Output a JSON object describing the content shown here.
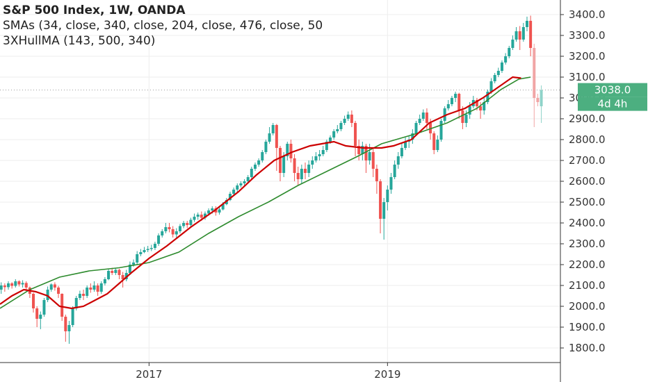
{
  "legend": {
    "title": "S&P 500 Index, 1W, OANDA",
    "sma": "SMAs (34, close, 340, close, 204, close, 476, close, 50",
    "hull": "3XHullMA (143, 500, 340)"
  },
  "price_label": {
    "value": "3038.0",
    "countdown": "4d 4h"
  },
  "colors": {
    "up": "#26a69a",
    "down": "#ef5350",
    "up_light": "#8fd3c9",
    "down_light": "#f1a5a5",
    "sma": "#2e8b2e",
    "hull": "#cc0000",
    "price_box": "#4caf80",
    "axis": "#333333",
    "grid": "#eeeeee"
  },
  "chart_data": {
    "type": "candlestick",
    "title": "S&P 500 Index, 1W, OANDA",
    "y_ticks": [
      "1800.0",
      "1900.0",
      "2000.0",
      "2100.0",
      "2200.0",
      "2300.0",
      "2400.0",
      "2500.0",
      "2600.0",
      "2700.0",
      "2800.0",
      "2900.0",
      "3000.0",
      "3100.0",
      "3200.0",
      "3300.0",
      "3400.0"
    ],
    "x_ticks": [
      "2017",
      "2019"
    ],
    "ylim": [
      1730,
      3470
    ],
    "xlim": [
      2015.75,
      2020.45
    ],
    "grid": true,
    "last_price": 3038.0,
    "series": [
      {
        "name": "SMA",
        "points": [
          [
            2015.75,
            1990
          ],
          [
            2016.0,
            2080
          ],
          [
            2016.25,
            2140
          ],
          [
            2016.5,
            2170
          ],
          [
            2016.75,
            2185
          ],
          [
            2017.0,
            2210
          ],
          [
            2017.25,
            2260
          ],
          [
            2017.5,
            2350
          ],
          [
            2017.75,
            2430
          ],
          [
            2018.0,
            2500
          ],
          [
            2018.25,
            2580
          ],
          [
            2018.5,
            2650
          ],
          [
            2018.75,
            2720
          ],
          [
            2018.95,
            2780
          ],
          [
            2019.25,
            2830
          ],
          [
            2019.5,
            2880
          ],
          [
            2019.75,
            2950
          ],
          [
            2019.95,
            3040
          ],
          [
            2020.1,
            3090
          ],
          [
            2020.2,
            3100
          ]
        ]
      },
      {
        "name": "3XHullMA",
        "points": [
          [
            2015.75,
            2010
          ],
          [
            2015.85,
            2050
          ],
          [
            2015.95,
            2080
          ],
          [
            2016.05,
            2070
          ],
          [
            2016.15,
            2050
          ],
          [
            2016.25,
            2000
          ],
          [
            2016.35,
            1990
          ],
          [
            2016.45,
            2000
          ],
          [
            2016.55,
            2030
          ],
          [
            2016.65,
            2060
          ],
          [
            2016.75,
            2110
          ],
          [
            2016.85,
            2160
          ],
          [
            2017.0,
            2230
          ],
          [
            2017.15,
            2290
          ],
          [
            2017.35,
            2380
          ],
          [
            2017.55,
            2460
          ],
          [
            2017.75,
            2550
          ],
          [
            2017.9,
            2630
          ],
          [
            2018.05,
            2700
          ],
          [
            2018.2,
            2740
          ],
          [
            2018.35,
            2770
          ],
          [
            2018.45,
            2780
          ],
          [
            2018.55,
            2790
          ],
          [
            2018.65,
            2770
          ],
          [
            2018.8,
            2760
          ],
          [
            2018.95,
            2760
          ],
          [
            2019.05,
            2770
          ],
          [
            2019.2,
            2800
          ],
          [
            2019.35,
            2880
          ],
          [
            2019.5,
            2920
          ],
          [
            2019.65,
            2950
          ],
          [
            2019.8,
            3000
          ],
          [
            2019.95,
            3060
          ],
          [
            2020.05,
            3100
          ],
          [
            2020.12,
            3095
          ]
        ]
      }
    ],
    "candles": [
      [
        2015.76,
        2080,
        2100,
        2115,
        2060
      ],
      [
        2015.79,
        2100,
        2092,
        2110,
        2070
      ],
      [
        2015.82,
        2092,
        2110,
        2120,
        2080
      ],
      [
        2015.85,
        2110,
        2098,
        2116,
        2085
      ],
      [
        2015.88,
        2098,
        2120,
        2130,
        2090
      ],
      [
        2015.91,
        2120,
        2105,
        2125,
        2095
      ],
      [
        2015.94,
        2105,
        2112,
        2125,
        2090
      ],
      [
        2015.97,
        2112,
        2090,
        2120,
        2075
      ],
      [
        2016.0,
        2090,
        2060,
        2095,
        2040
      ],
      [
        2016.03,
        2060,
        1990,
        2065,
        1970
      ],
      [
        2016.06,
        1990,
        1940,
        2000,
        1900
      ],
      [
        2016.09,
        1940,
        1960,
        1975,
        1890
      ],
      [
        2016.12,
        1960,
        2030,
        2040,
        1950
      ],
      [
        2016.15,
        2030,
        2080,
        2095,
        2020
      ],
      [
        2016.18,
        2080,
        2105,
        2110,
        2070
      ],
      [
        2016.21,
        2105,
        2090,
        2115,
        2075
      ],
      [
        2016.24,
        2090,
        2060,
        2098,
        2040
      ],
      [
        2016.27,
        2060,
        1950,
        2062,
        1930
      ],
      [
        2016.3,
        1950,
        1880,
        1960,
        1830
      ],
      [
        2016.33,
        1880,
        1910,
        1930,
        1820
      ],
      [
        2016.36,
        1910,
        1990,
        2000,
        1900
      ],
      [
        2016.39,
        1990,
        2040,
        2050,
        1980
      ],
      [
        2016.42,
        2040,
        2060,
        2075,
        2030
      ],
      [
        2016.45,
        2060,
        2050,
        2080,
        2030
      ],
      [
        2016.48,
        2050,
        2090,
        2100,
        2040
      ],
      [
        2016.51,
        2090,
        2080,
        2110,
        2065
      ],
      [
        2016.54,
        2080,
        2100,
        2120,
        2070
      ],
      [
        2016.57,
        2100,
        2070,
        2110,
        2050
      ],
      [
        2016.6,
        2070,
        2110,
        2120,
        2060
      ],
      [
        2016.63,
        2110,
        2130,
        2140,
        2100
      ],
      [
        2016.66,
        2130,
        2170,
        2180,
        2125
      ],
      [
        2016.69,
        2170,
        2160,
        2185,
        2150
      ],
      [
        2016.72,
        2160,
        2175,
        2185,
        2150
      ],
      [
        2016.75,
        2175,
        2150,
        2180,
        2130
      ],
      [
        2016.78,
        2150,
        2130,
        2165,
        2090
      ],
      [
        2016.81,
        2130,
        2160,
        2175,
        2120
      ],
      [
        2016.84,
        2160,
        2200,
        2215,
        2150
      ],
      [
        2016.87,
        2200,
        2210,
        2225,
        2190
      ],
      [
        2016.9,
        2210,
        2250,
        2265,
        2200
      ],
      [
        2016.93,
        2250,
        2260,
        2275,
        2240
      ],
      [
        2016.96,
        2260,
        2270,
        2285,
        2255
      ],
      [
        2016.99,
        2270,
        2275,
        2290,
        2260
      ],
      [
        2017.02,
        2275,
        2280,
        2295,
        2265
      ],
      [
        2017.05,
        2280,
        2300,
        2310,
        2270
      ],
      [
        2017.08,
        2300,
        2340,
        2350,
        2290
      ],
      [
        2017.11,
        2340,
        2360,
        2370,
        2330
      ],
      [
        2017.14,
        2360,
        2380,
        2400,
        2350
      ],
      [
        2017.17,
        2380,
        2370,
        2400,
        2355
      ],
      [
        2017.2,
        2370,
        2345,
        2385,
        2330
      ],
      [
        2017.23,
        2345,
        2360,
        2375,
        2330
      ],
      [
        2017.26,
        2360,
        2385,
        2395,
        2350
      ],
      [
        2017.29,
        2385,
        2400,
        2410,
        2375
      ],
      [
        2017.32,
        2400,
        2390,
        2410,
        2375
      ],
      [
        2017.35,
        2390,
        2415,
        2425,
        2380
      ],
      [
        2017.38,
        2415,
        2430,
        2445,
        2405
      ],
      [
        2017.41,
        2430,
        2440,
        2450,
        2415
      ],
      [
        2017.44,
        2440,
        2425,
        2455,
        2410
      ],
      [
        2017.47,
        2425,
        2445,
        2455,
        2415
      ],
      [
        2017.5,
        2445,
        2460,
        2470,
        2435
      ],
      [
        2017.53,
        2460,
        2470,
        2480,
        2445
      ],
      [
        2017.56,
        2470,
        2450,
        2480,
        2435
      ],
      [
        2017.59,
        2450,
        2465,
        2475,
        2440
      ],
      [
        2017.62,
        2465,
        2490,
        2500,
        2460
      ],
      [
        2017.65,
        2490,
        2510,
        2520,
        2485
      ],
      [
        2017.68,
        2510,
        2540,
        2550,
        2505
      ],
      [
        2017.71,
        2540,
        2560,
        2570,
        2530
      ],
      [
        2017.74,
        2560,
        2580,
        2590,
        2550
      ],
      [
        2017.77,
        2580,
        2590,
        2600,
        2570
      ],
      [
        2017.8,
        2590,
        2600,
        2610,
        2580
      ],
      [
        2017.83,
        2600,
        2620,
        2630,
        2595
      ],
      [
        2017.86,
        2620,
        2660,
        2670,
        2610
      ],
      [
        2017.89,
        2660,
        2680,
        2690,
        2650
      ],
      [
        2017.92,
        2680,
        2700,
        2710,
        2670
      ],
      [
        2017.95,
        2700,
        2740,
        2750,
        2690
      ],
      [
        2017.98,
        2740,
        2790,
        2800,
        2730
      ],
      [
        2018.01,
        2790,
        2830,
        2860,
        2780
      ],
      [
        2018.04,
        2830,
        2870,
        2880,
        2820
      ],
      [
        2018.07,
        2870,
        2760,
        2875,
        2650
      ],
      [
        2018.1,
        2760,
        2640,
        2770,
        2600
      ],
      [
        2018.13,
        2640,
        2720,
        2740,
        2620
      ],
      [
        2018.16,
        2720,
        2780,
        2790,
        2700
      ],
      [
        2018.19,
        2780,
        2710,
        2800,
        2690
      ],
      [
        2018.22,
        2710,
        2640,
        2730,
        2600
      ],
      [
        2018.25,
        2640,
        2610,
        2670,
        2580
      ],
      [
        2018.28,
        2610,
        2660,
        2680,
        2590
      ],
      [
        2018.31,
        2660,
        2640,
        2690,
        2610
      ],
      [
        2018.34,
        2640,
        2680,
        2700,
        2620
      ],
      [
        2018.37,
        2680,
        2700,
        2720,
        2660
      ],
      [
        2018.4,
        2700,
        2720,
        2740,
        2690
      ],
      [
        2018.43,
        2720,
        2730,
        2750,
        2700
      ],
      [
        2018.46,
        2730,
        2750,
        2770,
        2720
      ],
      [
        2018.49,
        2750,
        2790,
        2800,
        2740
      ],
      [
        2018.52,
        2790,
        2810,
        2820,
        2780
      ],
      [
        2018.55,
        2810,
        2840,
        2850,
        2800
      ],
      [
        2018.58,
        2840,
        2850,
        2870,
        2830
      ],
      [
        2018.61,
        2850,
        2880,
        2890,
        2840
      ],
      [
        2018.64,
        2880,
        2900,
        2915,
        2870
      ],
      [
        2018.67,
        2900,
        2920,
        2935,
        2890
      ],
      [
        2018.7,
        2920,
        2880,
        2940,
        2860
      ],
      [
        2018.73,
        2880,
        2770,
        2890,
        2720
      ],
      [
        2018.76,
        2770,
        2730,
        2800,
        2700
      ],
      [
        2018.79,
        2730,
        2770,
        2790,
        2700
      ],
      [
        2018.82,
        2770,
        2700,
        2780,
        2640
      ],
      [
        2018.85,
        2700,
        2740,
        2780,
        2680
      ],
      [
        2018.88,
        2740,
        2660,
        2760,
        2620
      ],
      [
        2018.91,
        2660,
        2600,
        2680,
        2540
      ],
      [
        2018.94,
        2600,
        2420,
        2610,
        2350
      ],
      [
        2018.97,
        2420,
        2500,
        2520,
        2320
      ],
      [
        2019.0,
        2500,
        2560,
        2580,
        2460
      ],
      [
        2019.03,
        2560,
        2620,
        2640,
        2540
      ],
      [
        2019.06,
        2620,
        2680,
        2700,
        2610
      ],
      [
        2019.09,
        2680,
        2720,
        2740,
        2660
      ],
      [
        2019.12,
        2720,
        2760,
        2780,
        2710
      ],
      [
        2019.15,
        2760,
        2790,
        2810,
        2750
      ],
      [
        2019.18,
        2790,
        2800,
        2820,
        2760
      ],
      [
        2019.21,
        2800,
        2830,
        2850,
        2780
      ],
      [
        2019.24,
        2830,
        2880,
        2890,
        2820
      ],
      [
        2019.27,
        2880,
        2900,
        2920,
        2870
      ],
      [
        2019.3,
        2900,
        2930,
        2945,
        2890
      ],
      [
        2019.33,
        2930,
        2880,
        2950,
        2850
      ],
      [
        2019.36,
        2880,
        2830,
        2900,
        2800
      ],
      [
        2019.39,
        2830,
        2750,
        2840,
        2730
      ],
      [
        2019.42,
        2750,
        2800,
        2820,
        2740
      ],
      [
        2019.45,
        2800,
        2890,
        2900,
        2790
      ],
      [
        2019.48,
        2890,
        2950,
        2960,
        2880
      ],
      [
        2019.51,
        2950,
        2970,
        2990,
        2940
      ],
      [
        2019.54,
        2970,
        3000,
        3010,
        2960
      ],
      [
        2019.57,
        3000,
        3020,
        3030,
        2980
      ],
      [
        2019.6,
        3020,
        2940,
        3025,
        2900
      ],
      [
        2019.63,
        2940,
        2880,
        2960,
        2850
      ],
      [
        2019.66,
        2880,
        2920,
        2940,
        2860
      ],
      [
        2019.69,
        2920,
        2960,
        2980,
        2900
      ],
      [
        2019.72,
        2960,
        2990,
        3010,
        2950
      ],
      [
        2019.75,
        2990,
        2960,
        3000,
        2940
      ],
      [
        2019.78,
        2960,
        2940,
        2980,
        2900
      ],
      [
        2019.81,
        2940,
        2980,
        3000,
        2920
      ],
      [
        2019.84,
        2980,
        3030,
        3040,
        2970
      ],
      [
        2019.87,
        3030,
        3080,
        3095,
        3020
      ],
      [
        2019.9,
        3080,
        3110,
        3120,
        3070
      ],
      [
        2019.93,
        3110,
        3130,
        3145,
        3100
      ],
      [
        2019.96,
        3130,
        3170,
        3180,
        3120
      ],
      [
        2019.99,
        3170,
        3200,
        3215,
        3160
      ],
      [
        2020.02,
        3200,
        3240,
        3250,
        3190
      ],
      [
        2020.05,
        3240,
        3280,
        3300,
        3230
      ],
      [
        2020.08,
        3280,
        3320,
        3340,
        3270
      ],
      [
        2020.11,
        3320,
        3280,
        3345,
        3230
      ],
      [
        2020.14,
        3280,
        3340,
        3360,
        3270
      ],
      [
        2020.17,
        3340,
        3370,
        3390,
        3320
      ],
      [
        2020.2,
        3370,
        3240,
        3395,
        3200
      ],
      [
        2020.23,
        3240,
        3000,
        3260,
        2860
      ],
      [
        2020.26,
        3000,
        2980,
        3020,
        2960
      ],
      [
        2020.29,
        2960,
        3038,
        3060,
        2880
      ]
    ]
  }
}
